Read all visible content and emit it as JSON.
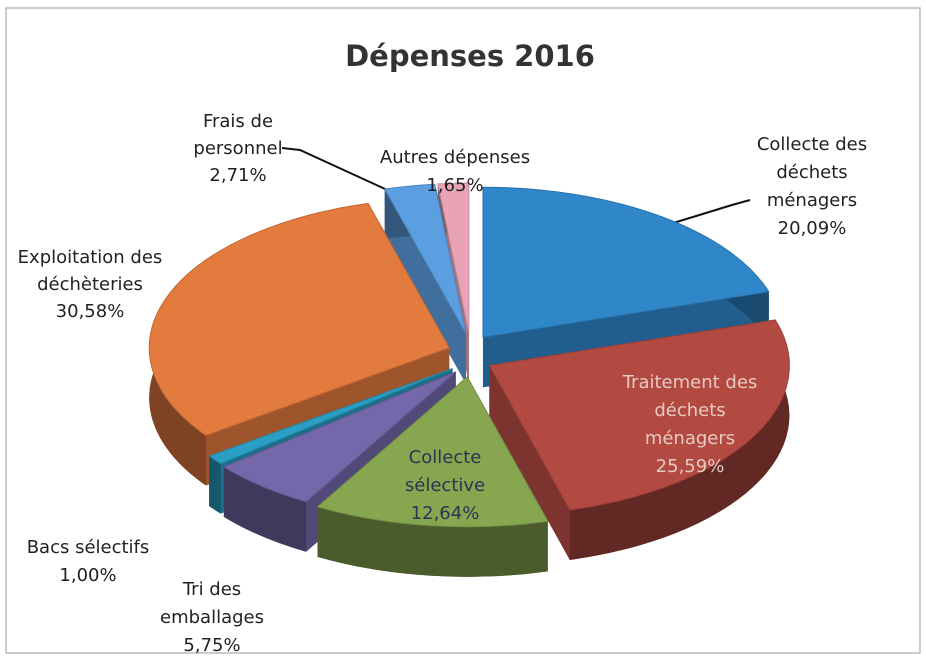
{
  "chart_data": {
    "type": "pie",
    "title": "Dépenses 2016",
    "categories": [
      [
        "Collecte des",
        "déchets",
        "ménagers"
      ],
      [
        "Traitement des",
        "déchets",
        "ménagers"
      ],
      [
        "Collecte",
        "sélective"
      ],
      [
        "Tri des",
        "emballages"
      ],
      [
        "Bacs sélectifs"
      ],
      [
        "Exploitation des",
        "déchèteries"
      ],
      [
        "Frais de",
        "personnel"
      ],
      [
        "Autres dépenses"
      ]
    ],
    "values": [
      20.09,
      25.59,
      12.64,
      5.75,
      1.0,
      30.58,
      2.71,
      1.65
    ],
    "value_labels": [
      "20,09%",
      "25,59%",
      "12,64%",
      "5,75%",
      "1,00%",
      "30,58%",
      "2,71%",
      "1,65%"
    ],
    "colors": [
      "#2f86c9",
      "#b34a42",
      "#86a650",
      "#7468aa",
      "#2a9ec4",
      "#e37a3e",
      "#5b9fe0",
      "#e8a3b4"
    ]
  }
}
